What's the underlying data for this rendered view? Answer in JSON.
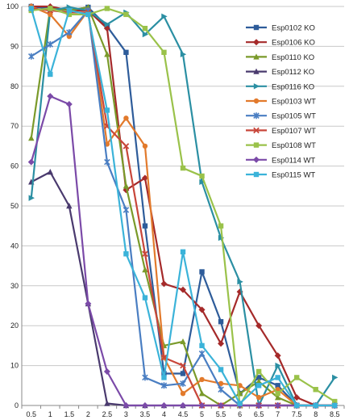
{
  "chart_data": {
    "type": "line",
    "title": "",
    "xlabel": "",
    "ylabel": "",
    "x": [
      "0.5",
      "1",
      "1.5",
      "2",
      "2.5",
      "3",
      "3.5",
      "4",
      "4.5",
      "5",
      "5.5",
      "6",
      "6.5",
      "7",
      "7.5",
      "8",
      "8.5"
    ],
    "ylim": [
      0,
      100
    ],
    "yticks": [
      0,
      10,
      20,
      30,
      40,
      50,
      60,
      70,
      80,
      90,
      100
    ],
    "grid": "horizontal",
    "legend_position": "right",
    "series": [
      {
        "name": "Esp0102 KO",
        "color": "#2E5C9A",
        "marker": "square",
        "values": [
          100,
          99.5,
          99,
          99.8,
          95,
          88.5,
          45,
          8,
          8,
          33.5,
          21,
          3,
          7,
          5,
          0,
          0,
          0
        ]
      },
      {
        "name": "Esp0106 KO",
        "color": "#A52A2A",
        "marker": "diamond",
        "values": [
          100,
          100,
          99,
          99,
          94.5,
          54,
          57,
          30.5,
          29,
          24,
          15.5,
          28.5,
          20,
          12.5,
          2,
          0,
          0
        ]
      },
      {
        "name": "Esp0110 KO",
        "color": "#7A9A2A",
        "marker": "triangle",
        "values": [
          67,
          99.5,
          99,
          99.8,
          88,
          55,
          34,
          15,
          16,
          3,
          0,
          3,
          6,
          2,
          0,
          0,
          0
        ]
      },
      {
        "name": "Esp0112 KO",
        "color": "#4A3A6E",
        "marker": "triangle",
        "values": [
          56,
          58.5,
          50,
          25.5,
          0.5,
          0,
          0,
          0,
          0,
          0,
          0,
          0,
          0,
          0,
          0,
          0,
          0
        ]
      },
      {
        "name": "Esp0116 KO",
        "color": "#2B8FA3",
        "marker": "triangle-right",
        "values": [
          52,
          99,
          99.8,
          99,
          95.5,
          98.5,
          93,
          97.5,
          88,
          56,
          42,
          31,
          0,
          10,
          0,
          0,
          7
        ]
      },
      {
        "name": "Esp0103 WT",
        "color": "#E27A2C",
        "marker": "circle",
        "values": [
          100,
          98,
          92.5,
          99,
          65.5,
          72,
          65,
          12,
          3,
          6.5,
          5.5,
          5,
          2,
          4,
          0,
          0,
          0
        ]
      },
      {
        "name": "Esp0105 WT",
        "color": "#4A7EC2",
        "marker": "star",
        "values": [
          87.5,
          90.5,
          93.5,
          99,
          61,
          49,
          7,
          5,
          5.5,
          13,
          4,
          0,
          0,
          0,
          0,
          0,
          0
        ]
      },
      {
        "name": "Esp0107 WT",
        "color": "#C8463A",
        "marker": "x",
        "values": [
          99.5,
          99,
          98.5,
          98.5,
          70,
          65,
          38,
          12,
          10,
          0,
          0,
          0,
          0,
          0,
          0,
          0,
          0
        ]
      },
      {
        "name": "Esp0108 WT",
        "color": "#9AC24A",
        "marker": "square",
        "values": [
          99,
          99.5,
          98,
          98,
          99.5,
          98,
          94.5,
          88.5,
          59.5,
          57.5,
          45,
          0,
          8.5,
          3,
          7,
          4,
          1
        ]
      },
      {
        "name": "Esp0114 WT",
        "color": "#7B4AA8",
        "marker": "diamond",
        "values": [
          61,
          77.5,
          75.5,
          25.5,
          8.5,
          0,
          0,
          0,
          0,
          0,
          0,
          0,
          0,
          0,
          0,
          0,
          0
        ]
      },
      {
        "name": "Esp0115 WT",
        "color": "#3BB3D9",
        "marker": "square",
        "values": [
          99.5,
          83,
          99,
          98,
          74,
          38,
          27,
          7,
          38.5,
          15,
          9,
          0.5,
          5,
          7,
          0,
          0,
          0
        ]
      }
    ]
  }
}
